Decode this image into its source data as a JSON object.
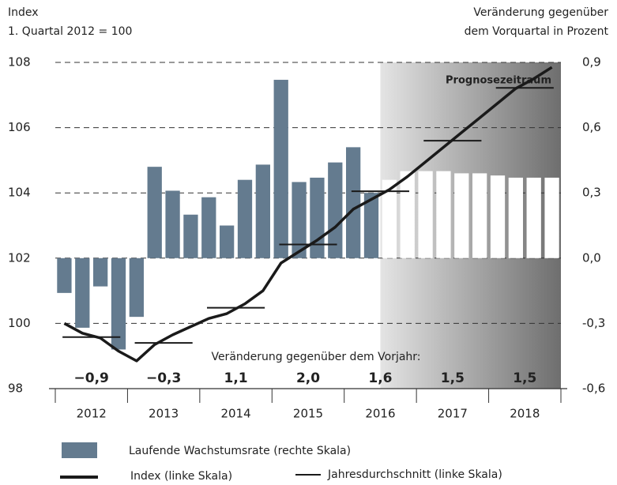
{
  "chart_data": {
    "type": "combo",
    "y_label": [
      "Index",
      "1. Quartal 2012 = 100"
    ],
    "y2_label": [
      "Veränderung gegenüber",
      "dem Vorquartal in Prozent"
    ],
    "xlim": [
      2012,
      2019
    ],
    "xticks": [
      {
        "value": 2012.5,
        "label": "2012"
      },
      {
        "value": 2013.5,
        "label": "2013"
      },
      {
        "value": 2014.5,
        "label": "2014"
      },
      {
        "value": 2015.5,
        "label": "2015"
      },
      {
        "value": 2016.5,
        "label": "2016"
      },
      {
        "value": 2017.5,
        "label": "2017"
      },
      {
        "value": 2018.5,
        "label": "2018"
      }
    ],
    "ylim": [
      98,
      108
    ],
    "yticks": [
      98,
      100,
      102,
      104,
      106,
      108
    ],
    "y2lim": [
      -0.6,
      0.9
    ],
    "y2ticks": [
      {
        "value": -0.6,
        "label": "-0,6"
      },
      {
        "value": -0.3,
        "label": "-0,3"
      },
      {
        "value": 0,
        "label": "0,0"
      },
      {
        "value": 0.3,
        "label": "0,3"
      },
      {
        "value": 0.6,
        "label": "0,6"
      },
      {
        "value": 0.9,
        "label": "0,9"
      }
    ],
    "grid": true,
    "region": {
      "label": "Prognosezeitraum",
      "from": 2016.5,
      "to": 2019
    },
    "series": [
      {
        "name": "Laufende Wachstumsrate (rechte Skala)",
        "type": "bar",
        "axis": "y2",
        "color": "#647b8f",
        "x": [
          2012.125,
          2012.375,
          2012.625,
          2012.875,
          2013.125,
          2013.375,
          2013.625,
          2013.875,
          2014.125,
          2014.375,
          2014.625,
          2014.875,
          2015.125,
          2015.375,
          2015.625,
          2015.875,
          2016.125,
          2016.375,
          2016.625,
          2016.875,
          2017.125,
          2017.375,
          2017.625,
          2017.875,
          2018.125,
          2018.375,
          2018.625,
          2018.875
        ],
        "values": [
          -0.16,
          -0.32,
          -0.13,
          -0.42,
          -0.27,
          0.42,
          0.31,
          0.2,
          0.28,
          0.15,
          0.36,
          0.43,
          0.82,
          0.35,
          0.37,
          0.44,
          0.51,
          0.3,
          0.36,
          0.4,
          0.4,
          0.4,
          0.39,
          0.39,
          0.38,
          0.37,
          0.37,
          0.37
        ],
        "colors": [
          "#647b8f",
          "#647b8f",
          "#647b8f",
          "#647b8f",
          "#647b8f",
          "#647b8f",
          "#647b8f",
          "#647b8f",
          "#647b8f",
          "#647b8f",
          "#647b8f",
          "#647b8f",
          "#647b8f",
          "#647b8f",
          "#647b8f",
          "#647b8f",
          "#647b8f",
          "#647b8f",
          "#ffffff",
          "#ffffff",
          "#ffffff",
          "#ffffff",
          "#ffffff",
          "#ffffff",
          "#ffffff",
          "#ffffff",
          "#ffffff",
          "#ffffff"
        ]
      },
      {
        "name": "Index (linke Skala)",
        "type": "line",
        "color": "#1a1a1a",
        "x": [
          2012.125,
          2012.375,
          2012.625,
          2012.875,
          2013.125,
          2013.375,
          2013.625,
          2013.875,
          2014.125,
          2014.375,
          2014.625,
          2014.875,
          2015.125,
          2015.375,
          2015.625,
          2015.875,
          2016.125,
          2016.375,
          2016.625,
          2016.875,
          2017.125,
          2017.375,
          2017.625,
          2017.875,
          2018.125,
          2018.375,
          2018.625,
          2018.875
        ],
        "values": [
          100.0,
          99.7,
          99.55,
          99.15,
          98.85,
          99.35,
          99.65,
          99.9,
          100.15,
          100.3,
          100.6,
          101.0,
          101.85,
          102.2,
          102.55,
          102.95,
          103.5,
          103.8,
          104.1,
          104.5,
          104.95,
          105.4,
          105.85,
          106.3,
          106.75,
          107.2,
          107.5,
          107.85
        ]
      },
      {
        "name": "Jahresdurchschnitt (linke Skala)",
        "type": "annual",
        "color": "#1a1a1a",
        "x": [
          2012.5,
          2013.5,
          2014.5,
          2015.5,
          2016.5,
          2017.5,
          2018.5
        ],
        "values": [
          99.58,
          99.4,
          100.48,
          102.42,
          104.05,
          105.6,
          107.22
        ]
      }
    ],
    "annual_change": {
      "title": "Veränderung gegenüber dem Vorjahr:",
      "x": [
        2012.5,
        2013.5,
        2014.5,
        2015.5,
        2016.5,
        2017.5,
        2018.5
      ],
      "values": [
        -0.9,
        -0.3,
        1.1,
        2.0,
        1.6,
        1.5,
        1.5
      ],
      "value_labels": [
        "−0,9",
        "−0,3",
        "1,1",
        "2,0",
        "1,6",
        "1,5",
        "1,5"
      ]
    }
  }
}
